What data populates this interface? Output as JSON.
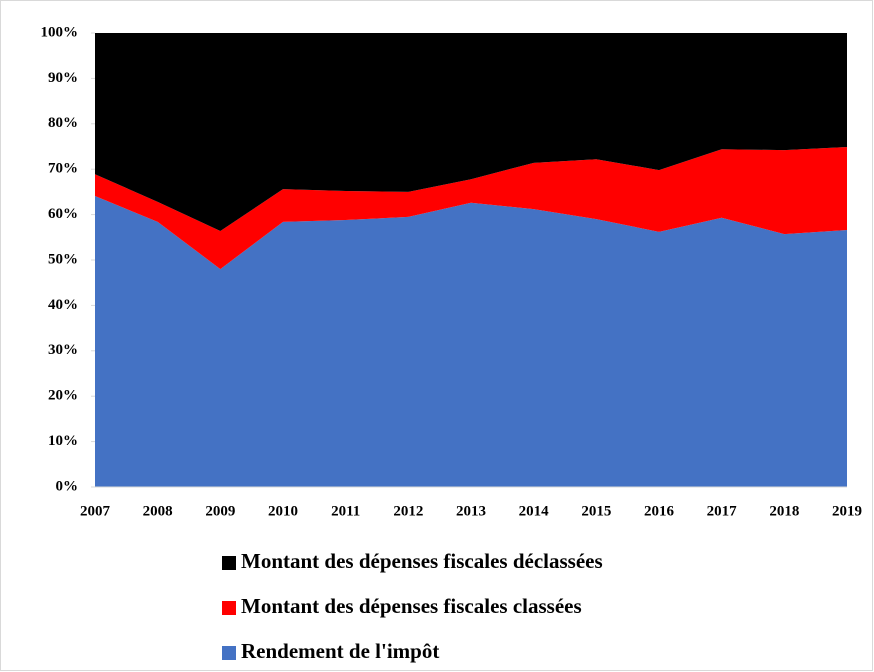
{
  "chart_data": {
    "type": "stacked-area",
    "x": [
      2007,
      2008,
      2009,
      2010,
      2011,
      2012,
      2013,
      2014,
      2015,
      2016,
      2017,
      2018,
      2019
    ],
    "xlim": [
      2007,
      2019
    ],
    "xticks": [
      2007,
      2008,
      2009,
      2010,
      2011,
      2012,
      2013,
      2014,
      2015,
      2016,
      2017,
      2018,
      2019
    ],
    "ylim": [
      0,
      100
    ],
    "yticks": [
      {
        "value": 0,
        "label": "0%"
      },
      {
        "value": 10,
        "label": "10%"
      },
      {
        "value": 20,
        "label": "20%"
      },
      {
        "value": 30,
        "label": "30%"
      },
      {
        "value": 40,
        "label": "40%"
      },
      {
        "value": 50,
        "label": "50%"
      },
      {
        "value": 60,
        "label": "60%"
      },
      {
        "value": 70,
        "label": "70%"
      },
      {
        "value": 80,
        "label": "80%"
      },
      {
        "value": 90,
        "label": "90%"
      },
      {
        "value": 100,
        "label": "100%"
      }
    ],
    "series": [
      {
        "name": "Rendement de l'impôt",
        "color": "#4472c4",
        "values": [
          64.1,
          58.4,
          48.0,
          58.4,
          58.8,
          59.5,
          62.6,
          61.2,
          59.0,
          56.2,
          59.3,
          55.7,
          56.6
        ]
      },
      {
        "name": "Montant des dépenses fiscales classées",
        "color": "#ff0000",
        "values": [
          4.8,
          4.4,
          8.4,
          7.2,
          6.4,
          5.5,
          5.2,
          10.2,
          13.2,
          13.6,
          15.1,
          18.5,
          18.3
        ]
      },
      {
        "name": "Montant des dépenses fiscales déclassées",
        "color": "#000000",
        "values": [
          31.1,
          37.2,
          43.6,
          34.4,
          34.8,
          35.0,
          32.2,
          28.6,
          27.8,
          30.2,
          25.6,
          25.8,
          25.1
        ]
      }
    ],
    "legend": "bottom"
  }
}
